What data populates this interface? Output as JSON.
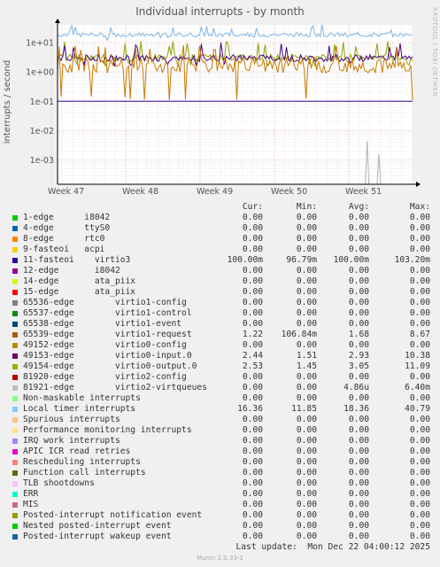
{
  "title": "Individual interrupts - by month",
  "watermark": "RRDTOOL / TOBI OETIKER",
  "vlabel": "interrupts / second",
  "chart_data": {
    "type": "line",
    "title": "Individual interrupts - by month",
    "ylabel": "interrupts / second",
    "yscale": "log",
    "ylim": [
      0.00015,
      40
    ],
    "y_ticks": [
      "1e+01",
      "1e+00",
      "1e-01",
      "1e-02",
      "1e-03"
    ],
    "y_tick_values": [
      10,
      1,
      0.1,
      0.01,
      0.001
    ],
    "x_ticks": [
      "Week 47",
      "Week 48",
      "Week 49",
      "Week 50",
      "Week 51"
    ],
    "grid": true,
    "series": [
      {
        "name": "Local timer interrupts",
        "color": "#7eb4e3",
        "min": 11.85,
        "avg": 18.36,
        "max": 40.79
      },
      {
        "name": "virtio0-output.0",
        "color": "#8fa000",
        "min": 1.45,
        "avg": 3.05,
        "max": 11.09
      },
      {
        "name": "virtio0-input.0",
        "color": "#4b0082",
        "min": 1.51,
        "avg": 2.93,
        "max": 10.38
      },
      {
        "name": "virtio1-request",
        "color": "#c87800",
        "min": 0.10684,
        "avg": 1.68,
        "max": 8.67
      },
      {
        "name": "virtio3",
        "color": "#330099",
        "min": 0.09679,
        "avg": 0.1,
        "max": 0.1032
      },
      {
        "name": "virtio2-virtqueues",
        "color": "#b0b0b0",
        "min": 0,
        "avg": 4.86e-06,
        "max": 0.0064
      }
    ]
  },
  "legend": {
    "headers": {
      "cur": "Cur:",
      "min": "Min:",
      "avg": "Avg:",
      "max": "Max:"
    },
    "rows": [
      {
        "label": "1-edge      i8042",
        "color": "#00cc00",
        "cur": "0.00",
        "min": "0.00",
        "avg": "0.00",
        "max": "0.00"
      },
      {
        "label": "4-edge      ttyS0",
        "color": "#0066b3",
        "cur": "0.00",
        "min": "0.00",
        "avg": "0.00",
        "max": "0.00"
      },
      {
        "label": "8-edge      rtc0",
        "color": "#ff8000",
        "cur": "0.00",
        "min": "0.00",
        "avg": "0.00",
        "max": "0.00"
      },
      {
        "label": "9-fasteoi   acpi",
        "color": "#ffcc00",
        "cur": "0.00",
        "min": "0.00",
        "avg": "0.00",
        "max": "0.00"
      },
      {
        "label": "11-fasteoi    virtio3",
        "color": "#330099",
        "cur": "100.00m",
        "min": "96.79m",
        "avg": "100.00m",
        "max": "103.20m"
      },
      {
        "label": "12-edge       i8042",
        "color": "#990099",
        "cur": "0.00",
        "min": "0.00",
        "avg": "0.00",
        "max": "0.00"
      },
      {
        "label": "14-edge       ata_piix",
        "color": "#ccff00",
        "cur": "0.00",
        "min": "0.00",
        "avg": "0.00",
        "max": "0.00"
      },
      {
        "label": "15-edge       ata_piix",
        "color": "#ff0000",
        "cur": "0.00",
        "min": "0.00",
        "avg": "0.00",
        "max": "0.00"
      },
      {
        "label": "65536-edge        virtio1-config",
        "color": "#808080",
        "cur": "0.00",
        "min": "0.00",
        "avg": "0.00",
        "max": "0.00"
      },
      {
        "label": "65537-edge        virtio1-control",
        "color": "#008f00",
        "cur": "0.00",
        "min": "0.00",
        "avg": "0.00",
        "max": "0.00"
      },
      {
        "label": "65538-edge        virtio1-event",
        "color": "#00487d",
        "cur": "0.00",
        "min": "0.00",
        "avg": "0.00",
        "max": "0.00"
      },
      {
        "label": "65539-edge        virtio1-request",
        "color": "#b35a00",
        "cur": "1.22",
        "min": "106.84m",
        "avg": "1.68",
        "max": "8.67"
      },
      {
        "label": "49152-edge        virtio0-config",
        "color": "#b38f00",
        "cur": "0.00",
        "min": "0.00",
        "avg": "0.00",
        "max": "0.00"
      },
      {
        "label": "49153-edge        virtio0-input.0",
        "color": "#6b006b",
        "cur": "2.44",
        "min": "1.51",
        "avg": "2.93",
        "max": "10.38"
      },
      {
        "label": "49154-edge        virtio0-output.0",
        "color": "#8fb300",
        "cur": "2.53",
        "min": "1.45",
        "avg": "3.05",
        "max": "11.09"
      },
      {
        "label": "81920-edge        virtio2-config",
        "color": "#b30000",
        "cur": "0.00",
        "min": "0.00",
        "avg": "0.00",
        "max": "0.00"
      },
      {
        "label": "81921-edge        virtio2-virtqueues",
        "color": "#bebebe",
        "cur": "0.00",
        "min": "0.00",
        "avg": "4.86u",
        "max": "6.40m"
      },
      {
        "label": "Non-maskable interrupts",
        "color": "#80ff80",
        "cur": "0.00",
        "min": "0.00",
        "avg": "0.00",
        "max": "0.00"
      },
      {
        "label": "Local timer interrupts",
        "color": "#80c9ff",
        "cur": "16.36",
        "min": "11.85",
        "avg": "18.36",
        "max": "40.79"
      },
      {
        "label": "Spurious interrupts",
        "color": "#ffc080",
        "cur": "0.00",
        "min": "0.00",
        "avg": "0.00",
        "max": "0.00"
      },
      {
        "label": "Performance monitoring interrupts",
        "color": "#ffe680",
        "cur": "0.00",
        "min": "0.00",
        "avg": "0.00",
        "max": "0.00"
      },
      {
        "label": "IRQ work interrupts",
        "color": "#aa80ff",
        "cur": "0.00",
        "min": "0.00",
        "avg": "0.00",
        "max": "0.00"
      },
      {
        "label": "APIC ICR read retries",
        "color": "#ee00cc",
        "cur": "0.00",
        "min": "0.00",
        "avg": "0.00",
        "max": "0.00"
      },
      {
        "label": "Rescheduling interrupts",
        "color": "#ff8080",
        "cur": "0.00",
        "min": "0.00",
        "avg": "0.00",
        "max": "0.00"
      },
      {
        "label": "Function call interrupts",
        "color": "#666600",
        "cur": "0.00",
        "min": "0.00",
        "avg": "0.00",
        "max": "0.00"
      },
      {
        "label": "TLB shootdowns",
        "color": "#ffbfff",
        "cur": "0.00",
        "min": "0.00",
        "avg": "0.00",
        "max": "0.00"
      },
      {
        "label": "ERR",
        "color": "#00ffcc",
        "cur": "0.00",
        "min": "0.00",
        "avg": "0.00",
        "max": "0.00"
      },
      {
        "label": "MIS",
        "color": "#cc6699",
        "cur": "0.00",
        "min": "0.00",
        "avg": "0.00",
        "max": "0.00"
      },
      {
        "label": "Posted-interrupt notification event",
        "color": "#999900",
        "cur": "0.00",
        "min": "0.00",
        "avg": "0.00",
        "max": "0.00"
      },
      {
        "label": "Nested posted-interrupt event",
        "color": "#00cc00",
        "cur": "0.00",
        "min": "0.00",
        "avg": "0.00",
        "max": "0.00"
      },
      {
        "label": "Posted-interrupt wakeup event",
        "color": "#0066b3",
        "cur": "0.00",
        "min": "0.00",
        "avg": "0.00",
        "max": "0.00"
      }
    ]
  },
  "last_update": "Last update:  Mon Dec 22 04:00:12 2025",
  "footer": "Munin 2.0.33-1"
}
